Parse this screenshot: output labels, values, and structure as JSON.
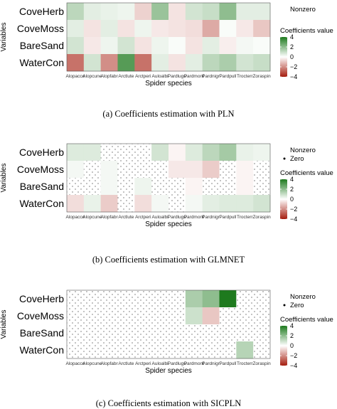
{
  "chart_data": [
    {
      "type": "heatmap",
      "caption": "(a) Coefficients estimation with PLN",
      "xlabel": "Spider species",
      "ylabel": "Variables",
      "rows": [
        "CoveHerb",
        "CoveMoss",
        "BareSand",
        "WaterCon"
      ],
      "columns": [
        "Alopacce",
        "Alopcune",
        "Alopfabr",
        "Arctlute",
        "Arctperi",
        "Auloalbi",
        "Pardlugu",
        "Pardmont",
        "Pardnigr",
        "Pardpull",
        "Trocterr",
        "Zoraspin"
      ],
      "legend": {
        "title": "Coefficients value",
        "ticks": [
          4,
          2,
          0,
          -2,
          -4
        ],
        "extra": [
          "Nonzero"
        ]
      },
      "values": [
        [
          1.2,
          0.5,
          0.4,
          0.3,
          -0.8,
          1.8,
          -0.5,
          0.8,
          1.0,
          2.0,
          0.5,
          0.5
        ],
        [
          0.5,
          -0.5,
          0.5,
          -0.5,
          0.3,
          -0.4,
          -0.5,
          -0.6,
          -1.5,
          0.1,
          -0.4,
          -1.0
        ],
        [
          0.8,
          -0.4,
          0.3,
          0.8,
          -0.5,
          0.3,
          0.1,
          -0.5,
          0.5,
          -0.3,
          0.2,
          0.1
        ],
        [
          -2.5,
          0.8,
          -2.0,
          3.0,
          -2.5,
          0.5,
          -0.5,
          0.5,
          1.2,
          1.5,
          0.8,
          1.0
        ]
      ],
      "nonzero": [
        [
          1,
          1,
          1,
          1,
          1,
          1,
          1,
          1,
          1,
          1,
          1,
          1
        ],
        [
          1,
          1,
          1,
          1,
          1,
          1,
          1,
          1,
          1,
          1,
          1,
          1
        ],
        [
          1,
          1,
          1,
          1,
          1,
          1,
          1,
          1,
          1,
          1,
          1,
          1
        ],
        [
          1,
          1,
          1,
          1,
          1,
          1,
          1,
          1,
          1,
          1,
          1,
          1
        ]
      ]
    },
    {
      "type": "heatmap",
      "caption": "(b) Coefficients estimation with GLMNET",
      "xlabel": "Spider species",
      "ylabel": "Variables",
      "rows": [
        "CoveHerb",
        "CoveMoss",
        "BareSand",
        "WaterCon"
      ],
      "columns": [
        "Alopacce",
        "Alopcune",
        "Alopfabr",
        "Arctlute",
        "Arctperi",
        "Auloalbi",
        "Pardlugu",
        "Pardmont",
        "Pardnigr",
        "Pardpull",
        "Trocterr",
        "Zoraspin"
      ],
      "legend": {
        "title": "Coefficients value",
        "ticks": [
          4,
          2,
          0,
          -2,
          -4
        ],
        "extra": [
          "Nonzero",
          "Zero"
        ]
      },
      "values": [
        [
          0.6,
          0.6,
          0,
          0,
          0,
          0.8,
          -0.2,
          0.6,
          1.2,
          1.6,
          0.4,
          0.3
        ],
        [
          0.2,
          0,
          0.2,
          0,
          0,
          0,
          -0.4,
          -0.4,
          -0.9,
          0,
          -0.2,
          0
        ],
        [
          0,
          0,
          0.2,
          0,
          0.3,
          0,
          0,
          -0.2,
          0,
          0,
          -0.2,
          0
        ],
        [
          -0.6,
          0.4,
          -0.9,
          0,
          -0.6,
          0.2,
          0,
          0.2,
          0.5,
          0.6,
          0.6,
          0.8
        ]
      ],
      "nonzero": [
        [
          1,
          1,
          0,
          0,
          0,
          1,
          1,
          1,
          1,
          1,
          1,
          1
        ],
        [
          1,
          0,
          1,
          0,
          0,
          0,
          1,
          1,
          1,
          0,
          1,
          0
        ],
        [
          0,
          0,
          1,
          0,
          1,
          0,
          0,
          1,
          0,
          0,
          1,
          0
        ],
        [
          1,
          1,
          1,
          0,
          1,
          1,
          0,
          1,
          1,
          1,
          1,
          1
        ]
      ]
    },
    {
      "type": "heatmap",
      "caption": "(c) Coefficients estimation with SICPLN",
      "xlabel": "Spider species",
      "ylabel": "Variables",
      "rows": [
        "CoveHerb",
        "CoveMoss",
        "BareSand",
        "WaterCon"
      ],
      "columns": [
        "Alopacce",
        "Alopcune",
        "Alopfabr",
        "Arctlute",
        "Arctperi",
        "Auloalbi",
        "Pardlugu",
        "Pardmont",
        "Pardnigr",
        "Pardpull",
        "Trocterr",
        "Zoraspin"
      ],
      "legend": {
        "title": "Coefficients value",
        "ticks": [
          4,
          2,
          0,
          -2,
          -4
        ],
        "extra": [
          "Nonzero",
          "Zero"
        ]
      },
      "values": [
        [
          0,
          0,
          0,
          0,
          0,
          0,
          0,
          1.5,
          2.0,
          4.0,
          0,
          0
        ],
        [
          0,
          0,
          0,
          0,
          0,
          0,
          0,
          0.9,
          -1.0,
          0,
          0,
          0
        ],
        [
          0,
          0,
          0,
          0,
          0,
          0,
          0,
          0,
          0,
          0,
          0,
          0
        ],
        [
          0,
          0,
          0,
          0,
          0,
          0,
          0,
          0,
          0,
          0,
          1.3,
          0
        ]
      ],
      "nonzero": [
        [
          0,
          0,
          0,
          0,
          0,
          0,
          0,
          1,
          1,
          1,
          0,
          0
        ],
        [
          0,
          0,
          0,
          0,
          0,
          0,
          0,
          1,
          1,
          0,
          0,
          0
        ],
        [
          0,
          0,
          0,
          0,
          0,
          0,
          0,
          0,
          0,
          0,
          0,
          0
        ],
        [
          0,
          0,
          0,
          0,
          0,
          0,
          0,
          0,
          0,
          0,
          1,
          0
        ]
      ]
    }
  ],
  "colors": {
    "positive": "#1e7a1e",
    "zero": "#ffffff",
    "negative": "#a51d0f",
    "dot": "#333333"
  }
}
